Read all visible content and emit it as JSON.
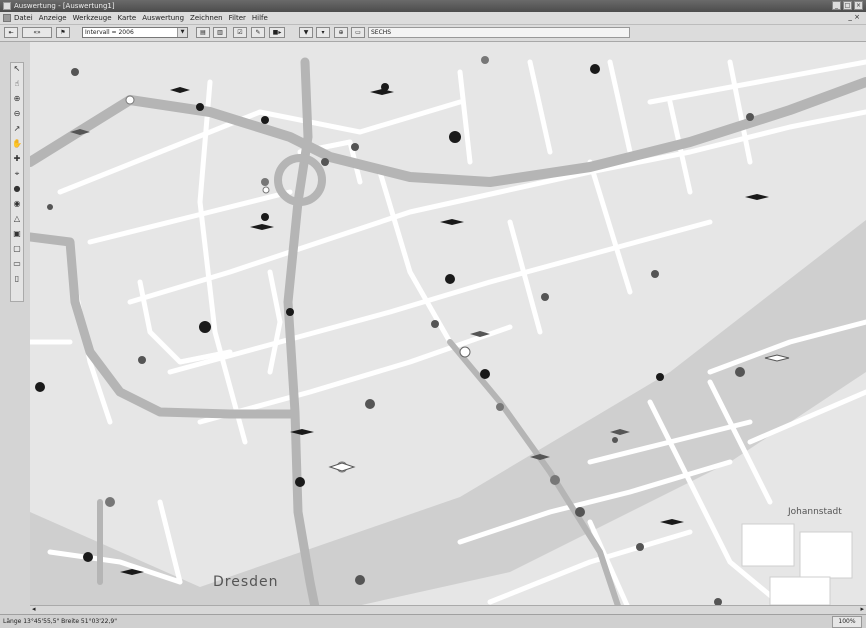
{
  "window": {
    "title": "Auswertung - [Auswertung1]",
    "controls": [
      "_",
      "□",
      "×"
    ]
  },
  "menubar": {
    "items": [
      "Datei",
      "Anzeige",
      "Werkzeuge",
      "Karte",
      "Auswertung",
      "Zeichnen",
      "Filter",
      "Hilfe"
    ],
    "mdi_controls": "_ ×"
  },
  "toolbar": {
    "nav_back": "⇤",
    "nav_prev": "«»",
    "nav_flag": "⚑",
    "period_select": "Intervall = 2006",
    "period_caret": "▼",
    "buttons": [
      "▤",
      "▥",
      "☑",
      "✎",
      "■▸",
      "▼",
      "▾",
      "⊕",
      "▭"
    ],
    "field_text": "SECHS"
  },
  "left_tools": [
    "↖",
    "☝",
    "⊕",
    "⊖",
    "↗",
    "✋",
    "✚",
    "⌖",
    "●",
    "◉",
    "△",
    "▣",
    "▢",
    "▭",
    "▯"
  ],
  "map": {
    "place_dresden": "Dresden",
    "place_johannstadt": "Johannstadt",
    "colors": {
      "background": "#e6e6e6",
      "river": "#cfcfcf",
      "major_road": "#b5b5b5",
      "minor_road": "#ffffff",
      "marker": "#1a1a1a"
    }
  },
  "scrollbar": {
    "left_arrow": "◂",
    "right_arrow": "▸"
  },
  "statusbar": {
    "coords": "Länge 13°45'55,5\" Breite 51°03'22,9\"",
    "zoom": "100%"
  }
}
